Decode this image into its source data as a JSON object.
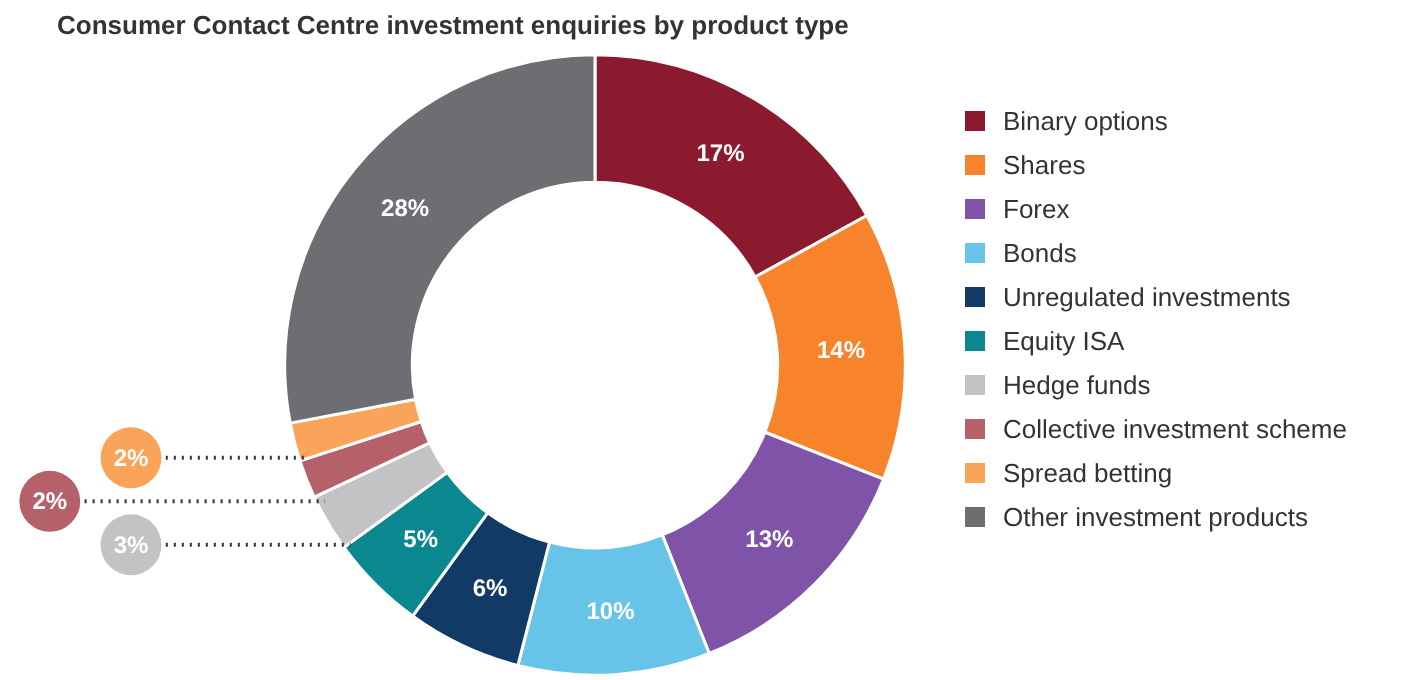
{
  "chart_data": {
    "type": "donut",
    "title": "Consumer Contact Centre investment enquiries by product type",
    "categories": [
      "Binary options",
      "Shares",
      "Forex",
      "Bonds",
      "Unregulated investments",
      "Equity ISA",
      "Hedge funds",
      "Collective investment scheme",
      "Spread betting",
      "Other investment products"
    ],
    "values": [
      17,
      14,
      13,
      10,
      6,
      5,
      3,
      2,
      2,
      28
    ],
    "colors": [
      "#8b1a2f",
      "#f7832a",
      "#7f53a8",
      "#68c3e8",
      "#123a66",
      "#0a878f",
      "#c3c3c5",
      "#b5616a",
      "#f9a35b",
      "#6d6e71"
    ],
    "value_labels": [
      "17%",
      "14%",
      "13%",
      "10%",
      "6%",
      "5%",
      "3%",
      "2%",
      "2%",
      "28%"
    ],
    "legend": "right"
  }
}
